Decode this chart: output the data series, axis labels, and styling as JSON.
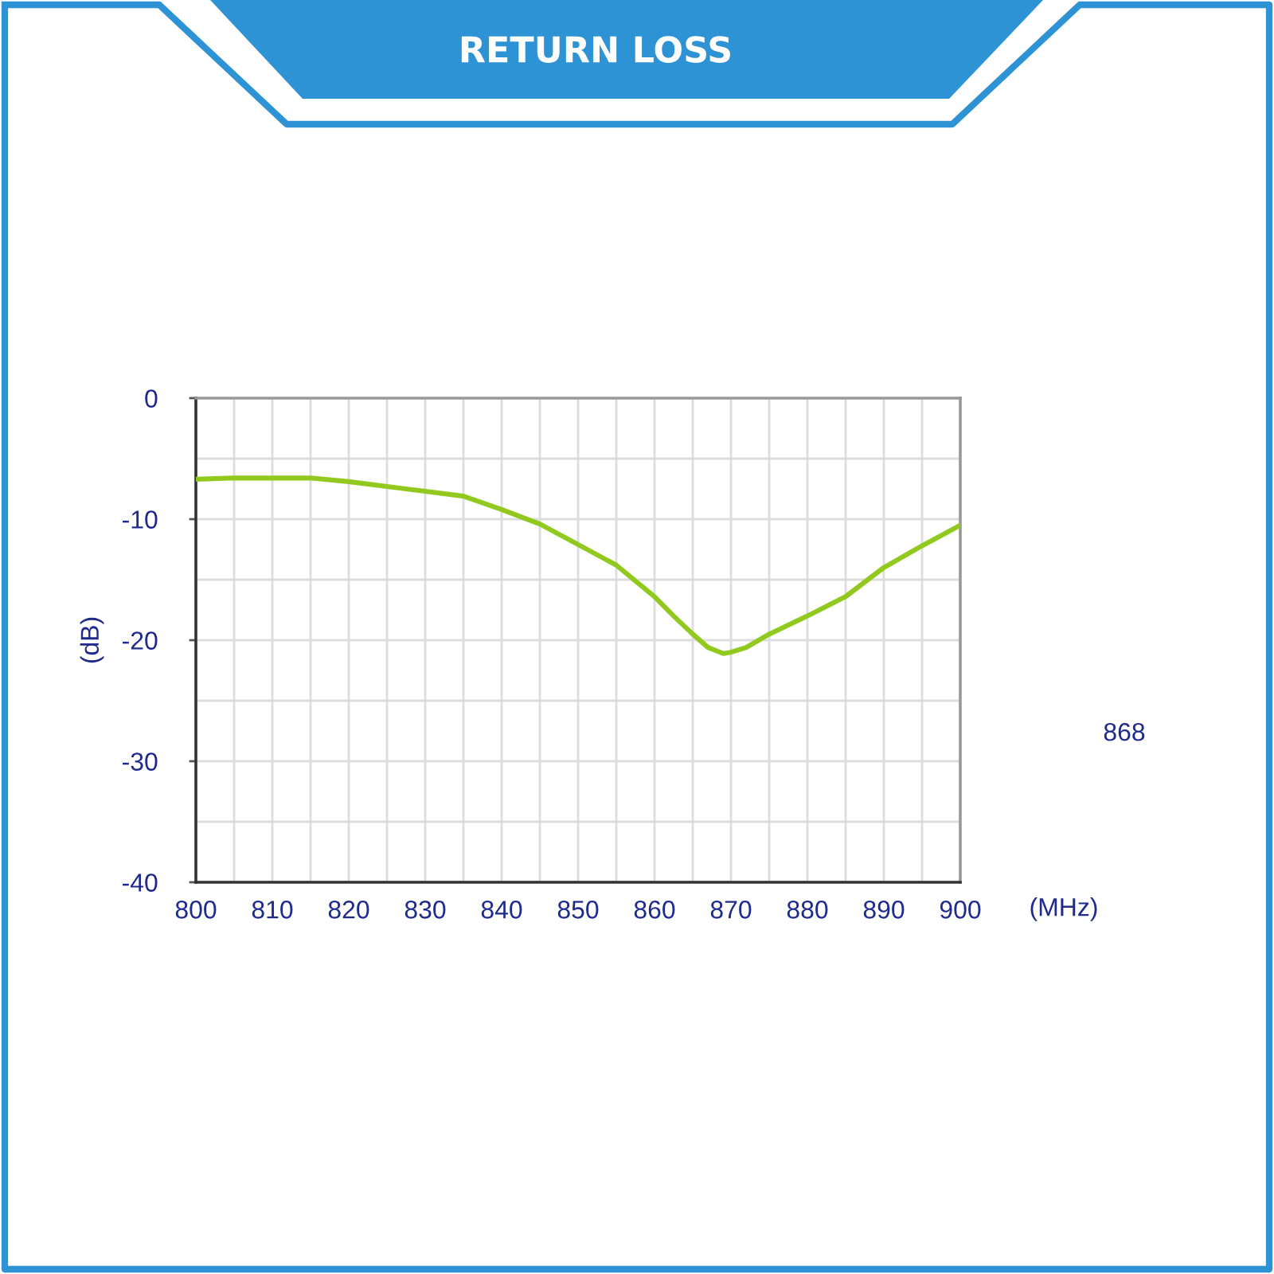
{
  "chart_data": {
    "type": "line",
    "title": "RETURN LOSS",
    "xlabel": "(MHz)",
    "ylabel": "(dB)",
    "annotations": [
      "868"
    ],
    "x": [
      800,
      805,
      810,
      815,
      820,
      825,
      830,
      835,
      840,
      845,
      850,
      855,
      860,
      862.5,
      865,
      867,
      869,
      870,
      872,
      875,
      880,
      885,
      890,
      895,
      900
    ],
    "series": [
      {
        "color": "#92c91e",
        "values": [
          -6.7,
          -6.6,
          -6.6,
          -6.6,
          -6.9,
          -7.3,
          -7.7,
          -8.1,
          -9.2,
          -10.4,
          -12.1,
          -13.8,
          -16.4,
          -18.0,
          -19.5,
          -20.6,
          -21.1,
          -21.0,
          -20.6,
          -19.5,
          -18.0,
          -16.4,
          -14.0,
          -12.2,
          -10.5
        ]
      }
    ],
    "xlim": [
      800,
      900
    ],
    "ylim": [
      -40,
      0
    ],
    "xticks": [
      800,
      810,
      820,
      830,
      840,
      850,
      860,
      870,
      880,
      890,
      900
    ],
    "yticks": [
      -40,
      -30,
      -20,
      -10,
      0
    ],
    "grid": true,
    "marker": "none",
    "line_style": "solid"
  }
}
